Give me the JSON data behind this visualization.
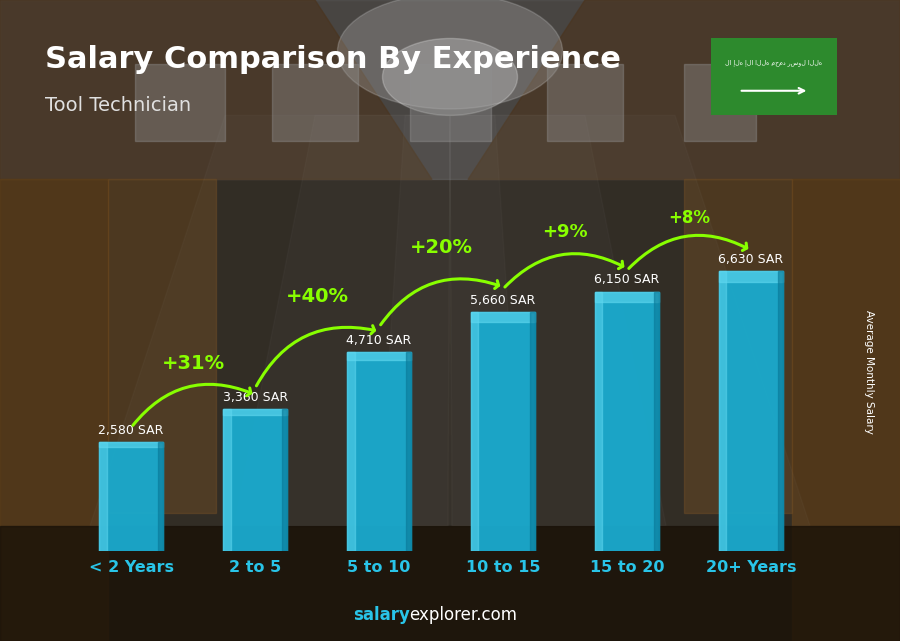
{
  "title": "Salary Comparison By Experience",
  "subtitle": "Tool Technician",
  "categories": [
    "< 2 Years",
    "2 to 5",
    "5 to 10",
    "10 to 15",
    "15 to 20",
    "20+ Years"
  ],
  "values": [
    2580,
    3360,
    4710,
    5660,
    6150,
    6630
  ],
  "bar_color_top": "#29c4e8",
  "bar_color_mid": "#1aabcf",
  "bar_color_bot": "#1090b0",
  "pct_changes": [
    null,
    "+31%",
    "+40%",
    "+20%",
    "+9%",
    "+8%"
  ],
  "pct_color": "#88ff00",
  "value_labels": [
    "2,580 SAR",
    "3,360 SAR",
    "4,710 SAR",
    "5,660 SAR",
    "6,150 SAR",
    "6,630 SAR"
  ],
  "ylabel_right": "Average Monthly Salary",
  "footer_salary": "salary",
  "footer_rest": "explorer.com",
  "footer_salary_color": "#29c4e8",
  "footer_rest_color": "#ffffff",
  "title_color": "#ffffff",
  "subtitle_color": "#e0e0e0",
  "label_color": "#ffffff",
  "tick_color": "#29c4e8",
  "flag_color": "#2d8a2d",
  "ylim": [
    0,
    8500
  ],
  "figsize": [
    9.0,
    6.41
  ],
  "dpi": 100
}
